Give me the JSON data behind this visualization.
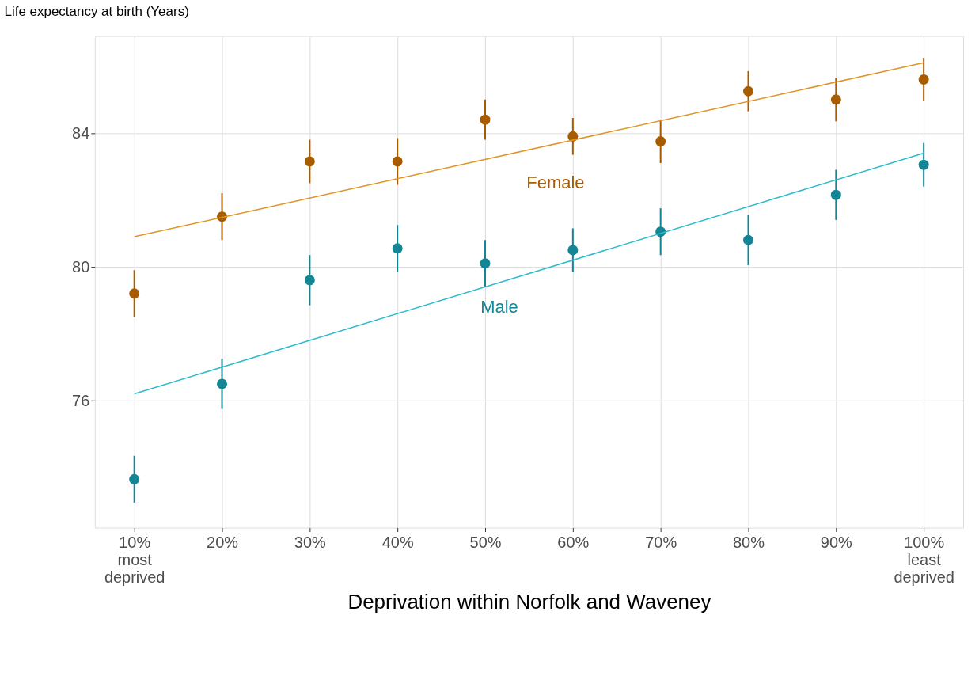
{
  "chart_data": {
    "type": "scatter",
    "ylabel": "Life expectancy at birth (Years)",
    "xlabel": "Deprivation within Norfolk and Waveney",
    "categories": [
      "10%\nmost\ndeprived",
      "20%",
      "30%",
      "40%",
      "50%",
      "60%",
      "70%",
      "80%",
      "90%",
      "100%\nleast\ndeprived"
    ],
    "ylim": [
      72.2,
      86.9
    ],
    "yticks": [
      76,
      80,
      84
    ],
    "grid": true,
    "legend": false,
    "series": [
      {
        "name": "Female",
        "marker": "circle",
        "color": "#a85c00",
        "values": [
          79.2,
          81.5,
          83.15,
          83.15,
          84.4,
          83.9,
          83.75,
          85.25,
          85.0,
          85.6
        ],
        "errors": [
          0.7,
          0.7,
          0.65,
          0.7,
          0.6,
          0.55,
          0.65,
          0.6,
          0.65,
          0.65
        ]
      },
      {
        "type": "line",
        "marker": "none",
        "line_style": "solid",
        "color": "#df9527",
        "values": [
          80.9,
          null,
          null,
          null,
          null,
          null,
          null,
          null,
          null,
          86.1
        ]
      },
      {
        "name": "Male",
        "marker": "circle",
        "color": "#138595",
        "values": [
          73.65,
          76.5,
          79.6,
          80.55,
          80.1,
          80.5,
          81.05,
          80.8,
          82.15,
          83.05
        ],
        "errors": [
          0.7,
          0.75,
          0.75,
          0.7,
          0.7,
          0.65,
          0.7,
          0.75,
          0.75,
          0.65
        ]
      },
      {
        "type": "line",
        "marker": "none",
        "line_style": "solid",
        "color": "#2dbccc",
        "values": [
          76.2,
          null,
          null,
          null,
          null,
          null,
          null,
          null,
          null,
          83.4
        ]
      }
    ]
  }
}
